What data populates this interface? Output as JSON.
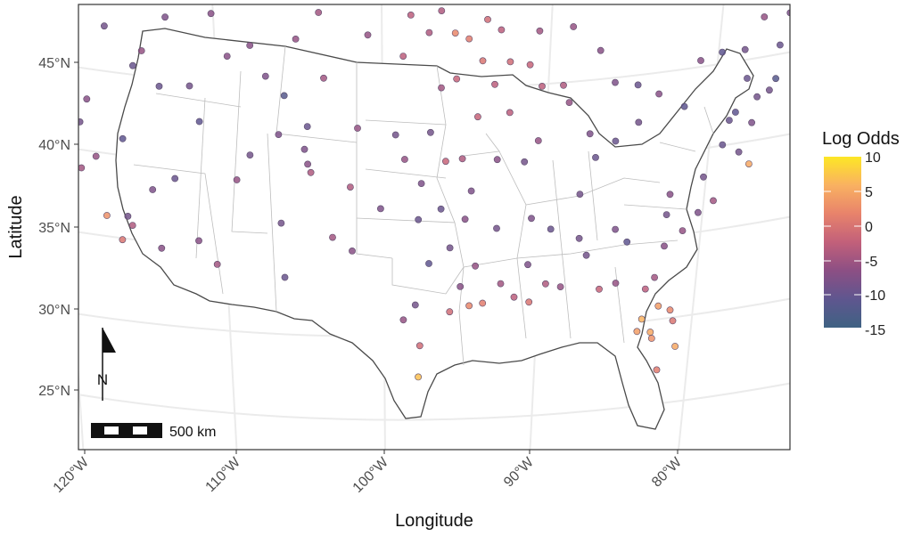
{
  "chart_data": {
    "type": "scatter",
    "title": "",
    "xlabel": "Longitude",
    "ylabel": "Latitude",
    "x_ticks": [
      "120°W",
      "110°W",
      "100°W",
      "90°W",
      "80°W"
    ],
    "y_ticks": [
      "25°N",
      "30°N",
      "35°N",
      "40°N",
      "45°N"
    ],
    "grid": true,
    "legend": {
      "title": "Log Odds",
      "placement": "right",
      "ticks": [
        "10",
        "5",
        "0",
        "-5",
        "-10",
        "-15"
      ],
      "colors": [
        "#fde725",
        "#f9b161",
        "#e8836b",
        "#c2607a",
        "#8c4f84",
        "#5f568f",
        "#3f6283"
      ]
    },
    "scale_bar": {
      "label": "500 km"
    },
    "north_arrow": {
      "label": "N"
    },
    "series": [
      {
        "name": "",
        "points": [
          [
            -124.2,
            40.8,
            -9
          ],
          [
            -123.5,
            39.5,
            -6
          ],
          [
            -122.4,
            37.8,
            -10
          ],
          [
            -121.9,
            36.6,
            -8
          ],
          [
            -121.5,
            38.6,
            -12
          ],
          [
            -120.6,
            35.3,
            -7
          ],
          [
            -119.8,
            36.7,
            -5
          ],
          [
            -118.2,
            34.1,
            3
          ],
          [
            -117.2,
            32.8,
            0
          ],
          [
            -116.5,
            33.8,
            -4
          ],
          [
            -119.8,
            39.5,
            -9
          ],
          [
            -117.4,
            47.7,
            -11
          ],
          [
            -122.3,
            47.6,
            -10
          ],
          [
            -123.0,
            44.9,
            -8
          ],
          [
            -122.7,
            45.5,
            -9
          ],
          [
            -121.3,
            44.1,
            -6
          ],
          [
            -116.2,
            43.6,
            -10
          ],
          [
            -114.0,
            46.9,
            -8
          ],
          [
            -111.9,
            40.8,
            -11
          ],
          [
            -112.1,
            33.5,
            -7
          ],
          [
            -110.9,
            32.2,
            -5
          ],
          [
            -106.6,
            35.1,
            -9
          ],
          [
            -105.0,
            39.7,
            -8
          ],
          [
            -104.8,
            41.1,
            -10
          ],
          [
            -108.5,
            45.8,
            -7
          ],
          [
            -106.3,
            42.9,
            -12
          ],
          [
            -100.8,
            46.8,
            -6
          ],
          [
            -96.8,
            46.9,
            -4
          ],
          [
            -98.5,
            45.5,
            -3
          ],
          [
            -96.7,
            40.8,
            -9
          ],
          [
            -97.3,
            37.7,
            -8
          ],
          [
            -95.7,
            39.0,
            -2
          ],
          [
            -97.5,
            35.5,
            -10
          ],
          [
            -96.8,
            32.8,
            -11
          ],
          [
            -97.7,
            30.3,
            -9
          ],
          [
            -95.4,
            29.8,
            -1
          ],
          [
            -94.1,
            30.1,
            2
          ],
          [
            -93.2,
            30.2,
            1
          ],
          [
            -91.1,
            30.4,
            -3
          ],
          [
            -90.1,
            30.0,
            0
          ],
          [
            -88.0,
            30.7,
            -6
          ],
          [
            -86.8,
            33.5,
            -9
          ],
          [
            -84.4,
            33.7,
            -8
          ],
          [
            -81.7,
            30.3,
            -5
          ],
          [
            -81.4,
            28.5,
            4
          ],
          [
            -82.5,
            27.9,
            6
          ],
          [
            -80.2,
            25.8,
            5
          ],
          [
            -81.8,
            26.6,
            3
          ],
          [
            -80.8,
            35.2,
            -7
          ],
          [
            -78.6,
            35.8,
            -9
          ],
          [
            -75.6,
            35.9,
            5
          ],
          [
            -77.4,
            37.5,
            -10
          ],
          [
            -76.6,
            39.3,
            -11
          ],
          [
            -75.2,
            39.9,
            -9
          ],
          [
            -74.0,
            40.7,
            -12
          ],
          [
            -73.8,
            42.7,
            -10
          ],
          [
            -72.7,
            41.8,
            -8
          ],
          [
            -71.4,
            41.8,
            -9
          ],
          [
            -71.1,
            42.4,
            -7
          ],
          [
            -70.3,
            43.7,
            -6
          ],
          [
            -69.8,
            44.3,
            -5
          ],
          [
            -68.8,
            44.8,
            -4
          ],
          [
            -72.6,
            44.3,
            -9
          ],
          [
            -71.5,
            43.2,
            -8
          ],
          [
            -84.5,
            39.1,
            -10
          ],
          [
            -83.0,
            40.0,
            -9
          ],
          [
            -81.7,
            41.5,
            -7
          ],
          [
            -80.0,
            40.4,
            -11
          ],
          [
            -86.2,
            39.8,
            -8
          ],
          [
            -87.6,
            41.9,
            -6
          ],
          [
            -88.0,
            43.0,
            -4
          ],
          [
            -89.4,
            43.1,
            -3
          ],
          [
            -90.2,
            44.5,
            -2
          ],
          [
            -91.5,
            44.8,
            -1
          ],
          [
            -93.3,
            45.0,
            0
          ],
          [
            -94.2,
            46.4,
            1
          ],
          [
            -95.1,
            46.8,
            2
          ],
          [
            -92.1,
            46.8,
            -3
          ],
          [
            -89.6,
            46.5,
            -5
          ],
          [
            -87.4,
            46.5,
            -6
          ],
          [
            -85.6,
            44.8,
            -7
          ],
          [
            -84.6,
            42.7,
            -8
          ],
          [
            -83.1,
            42.3,
            -10
          ],
          [
            -90.5,
            38.6,
            -9
          ],
          [
            -92.3,
            38.9,
            -7
          ],
          [
            -94.6,
            39.1,
            -4
          ],
          [
            -93.6,
            41.6,
            -2
          ],
          [
            -91.5,
            41.7,
            -3
          ],
          [
            -89.6,
            39.8,
            -6
          ],
          [
            -86.8,
            36.2,
            -9
          ],
          [
            -85.8,
            38.3,
            -10
          ],
          [
            -90.0,
            35.1,
            -8
          ],
          [
            -92.3,
            34.7,
            -9
          ],
          [
            -94.4,
            35.4,
            -7
          ],
          [
            -93.7,
            32.5,
            -6
          ],
          [
            -90.2,
            32.3,
            -8
          ],
          [
            -88.7,
            34.3,
            -10
          ],
          [
            -86.3,
            32.4,
            -9
          ],
          [
            -83.6,
            32.8,
            -11
          ],
          [
            -81.0,
            34.0,
            -9
          ],
          [
            -79.9,
            32.8,
            -6
          ],
          [
            -81.1,
            32.1,
            -7
          ],
          [
            -97.4,
            27.8,
            -1
          ],
          [
            -97.5,
            25.9,
            7
          ],
          [
            -98.5,
            29.4,
            -6
          ],
          [
            -101.9,
            33.6,
            -7
          ],
          [
            -106.4,
            31.8,
            -10
          ],
          [
            -103.2,
            34.4,
            -5
          ],
          [
            -102.0,
            37.5,
            -4
          ],
          [
            -100.0,
            36.2,
            -8
          ],
          [
            -99.0,
            40.7,
            -9
          ],
          [
            -101.5,
            41.1,
            -6
          ],
          [
            -103.7,
            44.1,
            -5
          ],
          [
            -107.5,
            44.0,
            -8
          ],
          [
            -110.0,
            45.0,
            -7
          ],
          [
            -112.5,
            42.9,
            -9
          ],
          [
            -114.5,
            42.6,
            -10
          ],
          [
            -115.6,
            44.6,
            -6
          ],
          [
            -118.0,
            45.7,
            -9
          ],
          [
            -120.5,
            46.6,
            -11
          ],
          [
            -119.5,
            48.0,
            -8
          ],
          [
            -111.0,
            47.5,
            -7
          ],
          [
            -105.5,
            46.4,
            -6
          ],
          [
            -104.0,
            48.1,
            -5
          ],
          [
            -98.0,
            48.0,
            -3
          ],
          [
            -96.0,
            48.2,
            -4
          ],
          [
            -93.0,
            47.5,
            -1
          ],
          [
            -95.0,
            44.0,
            -2
          ],
          [
            -92.5,
            43.5,
            -3
          ],
          [
            -96.0,
            43.5,
            -5
          ],
          [
            -98.4,
            39.2,
            -6
          ],
          [
            -96.0,
            36.1,
            -10
          ],
          [
            -94.0,
            37.1,
            -8
          ],
          [
            -95.4,
            33.7,
            -9
          ],
          [
            -94.7,
            31.3,
            -7
          ],
          [
            -92.0,
            31.3,
            -5
          ],
          [
            -89.0,
            31.0,
            -4
          ],
          [
            -85.4,
            30.2,
            -2
          ],
          [
            -84.3,
            30.4,
            -6
          ],
          [
            -82.3,
            29.7,
            -3
          ],
          [
            -80.6,
            28.1,
            2
          ],
          [
            -81.9,
            27.0,
            5
          ],
          [
            -82.8,
            27.2,
            4
          ],
          [
            -81.4,
            24.6,
            1
          ],
          [
            -80.4,
            27.4,
            0
          ],
          [
            -78.9,
            33.7,
            -8
          ],
          [
            -77.9,
            34.2,
            -5
          ],
          [
            -76.3,
            36.8,
            -9
          ],
          [
            -77.0,
            38.9,
            -10
          ],
          [
            -75.5,
            38.4,
            -8
          ],
          [
            -74.4,
            40.1,
            -9
          ],
          [
            -75.9,
            41.2,
            -10
          ],
          [
            -77.6,
            43.2,
            -11
          ],
          [
            -79.0,
            43.0,
            -7
          ],
          [
            -76.1,
            43.0,
            -9
          ],
          [
            -74.9,
            44.7,
            -6
          ],
          [
            -73.2,
            44.5,
            -8
          ],
          [
            -70.9,
            45.6,
            -5
          ],
          [
            -69.2,
            45.5,
            -4
          ],
          [
            -68.0,
            46.7,
            -3
          ],
          [
            -67.8,
            45.1,
            -2
          ],
          [
            -71.0,
            44.9,
            -6
          ],
          [
            -104.8,
            38.8,
            -7
          ],
          [
            -104.6,
            38.3,
            -4
          ],
          [
            -106.7,
            40.5,
            -8
          ],
          [
            -108.6,
            39.1,
            -9
          ],
          [
            -109.5,
            37.5,
            -6
          ],
          [
            -113.6,
            37.1,
            -10
          ],
          [
            -115.1,
            36.2,
            -8
          ],
          [
            -117.0,
            39.0,
            -11
          ],
          [
            -119.3,
            41.0,
            -7
          ],
          [
            -121.0,
            42.5,
            -9
          ],
          [
            -123.8,
            42.4,
            -6
          ],
          [
            -124.1,
            46.9,
            -8
          ],
          [
            -122.8,
            48.0,
            -10
          ],
          [
            -120.3,
            39.3,
            -5
          ],
          [
            -118.8,
            37.6,
            -6
          ],
          [
            -116.8,
            34.3,
            -9
          ],
          [
            -114.6,
            32.7,
            -7
          ]
        ]
      }
    ]
  }
}
